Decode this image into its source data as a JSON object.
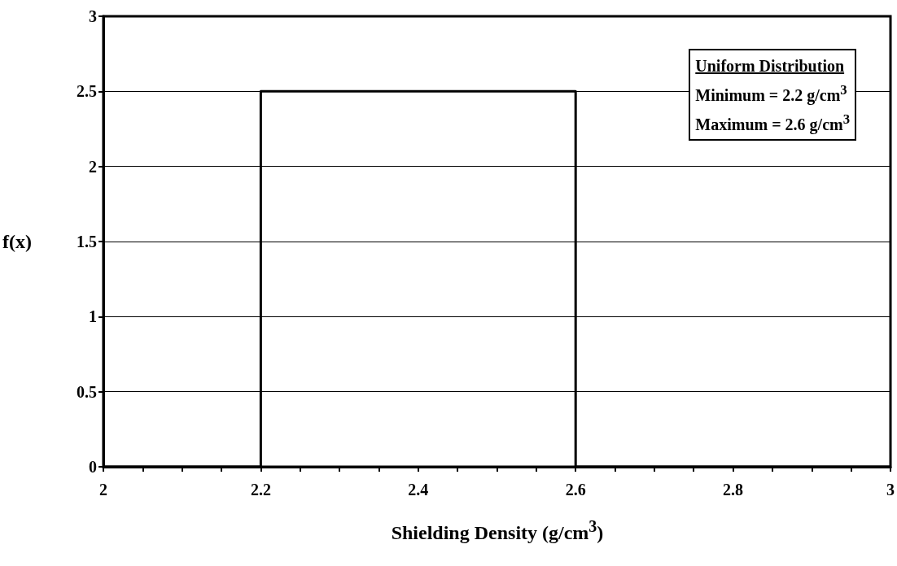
{
  "chart_data": {
    "type": "line",
    "xlabel": "Shielding Density (g/cm$^{3}$)",
    "ylabel": "f(x)",
    "annotations": [
      "Uniform Distribution",
      "Minimum = 2.2 g/cm$^{3}$",
      "Maximum = 2.6 g/cm$^{3}$"
    ],
    "series": [
      {
        "color": "#000000",
        "x": [
          2,
          2.2,
          2.2,
          2.6,
          2.6,
          3
        ],
        "values": [
          0,
          0,
          2.5,
          2.5,
          0,
          0
        ]
      }
    ],
    "xlim": [
      2,
      3
    ],
    "xticks": [
      2,
      {
        "value": 2.05,
        "label": null
      },
      {
        "value": 2.1,
        "label": null
      },
      {
        "value": 2.15,
        "label": null
      },
      2.2,
      {
        "value": 2.25,
        "label": null
      },
      {
        "value": 2.3,
        "label": null
      },
      {
        "value": 2.35,
        "label": null
      },
      2.4,
      {
        "value": 2.45,
        "label": null
      },
      {
        "value": 2.5,
        "label": null
      },
      {
        "value": 2.55,
        "label": null
      },
      2.6,
      {
        "value": 2.65,
        "label": null
      },
      {
        "value": 2.7,
        "label": null
      },
      {
        "value": 2.75,
        "label": null
      },
      2.8,
      {
        "value": 2.85,
        "label": null
      },
      {
        "value": 2.9,
        "label": null
      },
      {
        "value": 2.95,
        "label": null
      },
      3
    ],
    "ylim": [
      0,
      3
    ],
    "yticks": [
      0,
      0.5,
      1,
      1.5,
      2,
      2.5,
      3
    ],
    "grid": "y",
    "marker": "none",
    "line_style": "solid"
  }
}
